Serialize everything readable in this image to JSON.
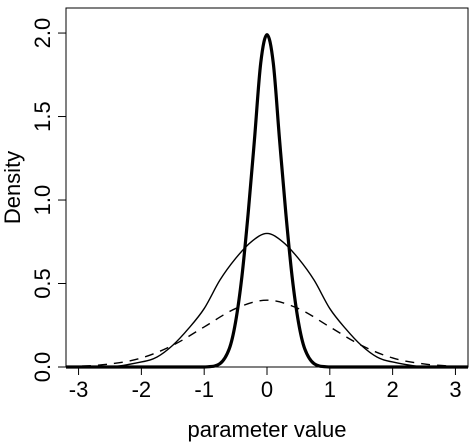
{
  "chart_data": {
    "type": "line",
    "title": "",
    "xlabel": "parameter value",
    "ylabel": "Density",
    "xlim": [
      -3.2,
      3.2
    ],
    "ylim": [
      0,
      2.15
    ],
    "x_ticks": [
      -3,
      -2,
      -1,
      0,
      1,
      2,
      3
    ],
    "x_tick_labels": [
      "-3",
      "-2",
      "-1",
      "0",
      "1",
      "2",
      "3"
    ],
    "y_ticks": [
      0,
      0.5,
      1,
      1.5,
      2
    ],
    "y_tick_labels": [
      "0.0",
      "0.5",
      "1.0",
      "1.5",
      "2.0"
    ],
    "grid": false,
    "legend": "none",
    "series": [
      {
        "style": "solid-thick",
        "color": "#000000",
        "x": [
          -3.2,
          -3,
          -2.5,
          -2,
          -1.5,
          -1,
          -0.75,
          -0.6,
          -0.5,
          -0.4,
          -0.3,
          -0.2,
          -0.1,
          0,
          0.1,
          0.2,
          0.3,
          0.4,
          0.5,
          0.6,
          0.75,
          1,
          1.5,
          2,
          2.5,
          3,
          3.2
        ],
        "y": [
          0,
          0,
          0,
          0,
          0,
          0,
          0.02,
          0.11,
          0.27,
          0.54,
          0.92,
          1.36,
          1.82,
          1.99,
          1.82,
          1.36,
          0.92,
          0.54,
          0.27,
          0.11,
          0.02,
          0,
          0,
          0,
          0,
          0,
          0
        ]
      },
      {
        "style": "solid-thin",
        "color": "#000000",
        "x": [
          -3.2,
          -3,
          -2.5,
          -2,
          -1.75,
          -1.5,
          -1.25,
          -1,
          -0.75,
          -0.5,
          -0.25,
          0,
          0.25,
          0.5,
          0.75,
          1,
          1.25,
          1.5,
          1.75,
          2,
          2.5,
          3,
          3.2
        ],
        "y": [
          0,
          0,
          0,
          0.03,
          0.06,
          0.13,
          0.23,
          0.35,
          0.52,
          0.65,
          0.75,
          0.8,
          0.75,
          0.65,
          0.52,
          0.35,
          0.23,
          0.13,
          0.06,
          0.03,
          0,
          0,
          0
        ],
        "tail_note": ""
      },
      {
        "style": "dashed",
        "color": "#000000",
        "x": [
          -3.2,
          -3,
          -2.5,
          -2,
          -1.5,
          -1,
          -0.5,
          0,
          0.5,
          1,
          1.5,
          2,
          2.5,
          3,
          3.2
        ],
        "y": [
          0.001,
          0.004,
          0.018,
          0.054,
          0.13,
          0.24,
          0.35,
          0.4,
          0.35,
          0.24,
          0.13,
          0.054,
          0.018,
          0.004,
          0.001
        ]
      }
    ]
  }
}
